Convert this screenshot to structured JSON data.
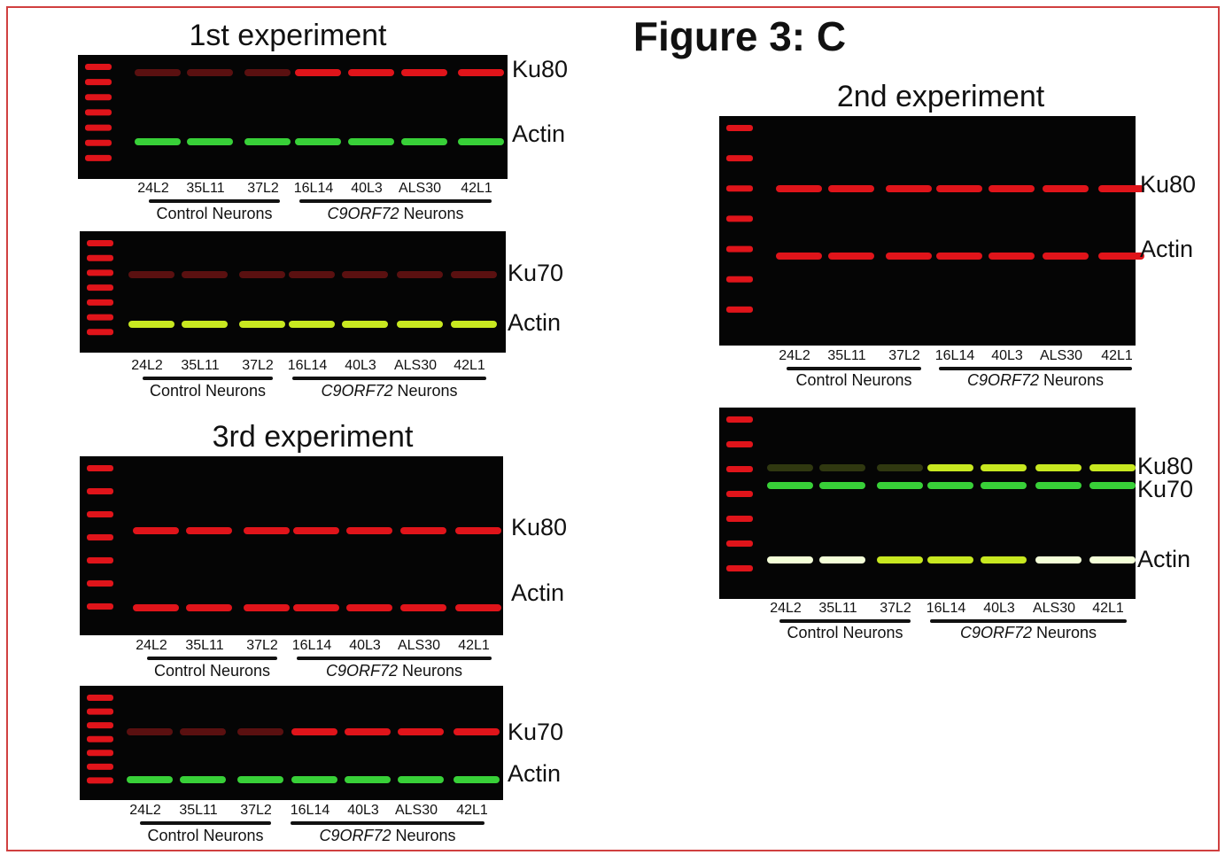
{
  "title": "Figure 3: C",
  "experiments": [
    {
      "title": "1st experiment",
      "blots": [
        {
          "bands": [
            "Ku80",
            "Actin"
          ],
          "lanes": [
            "24L2",
            "35L11",
            "37L2",
            "16L14",
            "40L3",
            "ALS30",
            "42L1"
          ],
          "groups": [
            {
              "text": "Control Neurons"
            },
            {
              "gene": "C9ORF72",
              "text": "Neurons"
            }
          ]
        },
        {
          "bands": [
            "Ku70",
            "Actin"
          ],
          "lanes": [
            "24L2",
            "35L11",
            "37L2",
            "16L14",
            "40L3",
            "ALS30",
            "42L1"
          ],
          "groups": [
            {
              "text": "Control Neurons"
            },
            {
              "gene": "C9ORF72",
              "text": "Neurons"
            }
          ]
        }
      ]
    },
    {
      "title": "2nd experiment",
      "blots": [
        {
          "bands": [
            "Ku80",
            "Actin"
          ],
          "lanes": [
            "24L2",
            "35L11",
            "37L2",
            "16L14",
            "40L3",
            "ALS30",
            "42L1"
          ],
          "groups": [
            {
              "text": "Control Neurons"
            },
            {
              "gene": "C9ORF72",
              "text": "Neurons"
            }
          ]
        },
        {
          "bands": [
            "Ku80",
            "Ku70",
            "Actin"
          ],
          "lanes": [
            "24L2",
            "35L11",
            "37L2",
            "16L14",
            "40L3",
            "ALS30",
            "42L1"
          ],
          "groups": [
            {
              "text": "Control Neurons"
            },
            {
              "gene": "C9ORF72",
              "text": "Neurons"
            }
          ]
        }
      ]
    },
    {
      "title": "3rd experiment",
      "blots": [
        {
          "bands": [
            "Ku80",
            "Actin"
          ],
          "lanes": [
            "24L2",
            "35L11",
            "37L2",
            "16L14",
            "40L3",
            "ALS30",
            "42L1"
          ],
          "groups": [
            {
              "text": "Control Neurons"
            },
            {
              "gene": "C9ORF72",
              "text": "Neurons"
            }
          ]
        },
        {
          "bands": [
            "Ku70",
            "Actin"
          ],
          "lanes": [
            "24L2",
            "35L11",
            "37L2",
            "16L14",
            "40L3",
            "ALS30",
            "42L1"
          ],
          "groups": [
            {
              "text": "Control Neurons"
            },
            {
              "gene": "C9ORF72",
              "text": "Neurons"
            }
          ]
        }
      ]
    }
  ]
}
